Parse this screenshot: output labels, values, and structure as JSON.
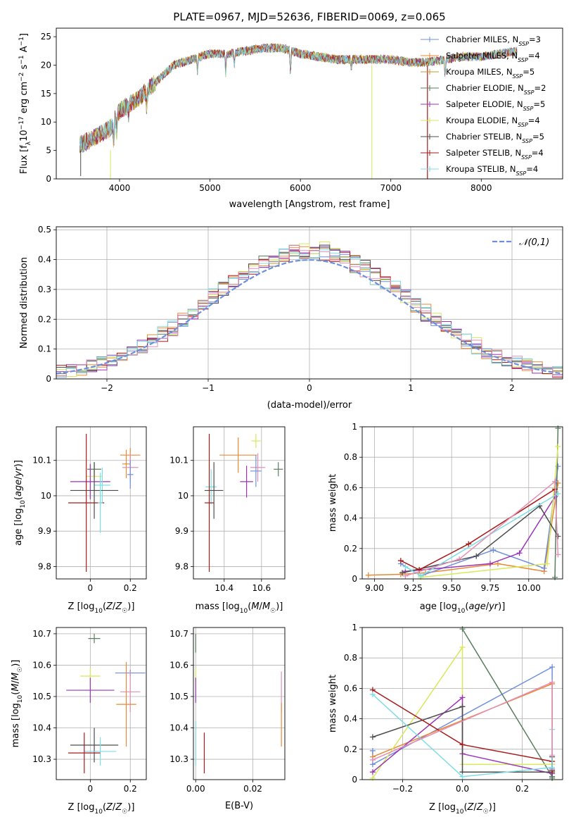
{
  "figure": {
    "title": "PLATE=0967, MJD=52636, FIBERID=0069, z=0.065"
  },
  "colors": {
    "c_blue": "#6f8fdd",
    "c_orange": "#e98a33",
    "c_gold": "#c9962e",
    "c_darkgreen": "#5a7f5e",
    "c_purple": "#9b35b6",
    "c_yellow": "#d7e85a",
    "c_darkgray": "#4d4d4d",
    "c_red": "#a81b1b",
    "c_cyan": "#7ddde5",
    "c_pink": "#e58fb5"
  },
  "chart_data": [
    {
      "id": "spectrum",
      "type": "line",
      "title": "PLATE=0967, MJD=52636, FIBERID=0069, z=0.065",
      "xlabel": "wavelength [Angstrom, rest frame]",
      "ylabel": "Flux [f_λ10^-17 erg cm^-2 s^-1 A^-1]",
      "xlim": [
        3300,
        8900
      ],
      "ylim": [
        0,
        26.5
      ],
      "xticks": [
        4000,
        5000,
        6000,
        7000,
        8000
      ],
      "yticks": [
        0,
        5,
        10,
        15,
        20,
        25
      ],
      "grid": false,
      "legend_position": "top-right",
      "continuum": {
        "x": [
          3560,
          3700,
          3900,
          4000,
          4200,
          4400,
          4600,
          4800,
          5000,
          5200,
          5400,
          5600,
          5800,
          6000,
          6200,
          6400,
          6600,
          6800,
          7000,
          7200,
          7400,
          7600,
          7800,
          8000,
          8200,
          8400
        ],
        "y": [
          6,
          7,
          9,
          12,
          14,
          17,
          20,
          21,
          22,
          22,
          22.5,
          23,
          23,
          22,
          21.5,
          21,
          21,
          21,
          21,
          20.5,
          20.5,
          21,
          21.5,
          21.5,
          22,
          22.5
        ]
      },
      "series": [
        {
          "name": "Chabrier MILES, N_SSP=3",
          "color_key": "c_blue"
        },
        {
          "name": "Salpeter MILES, N_SSP=4",
          "color_key": "c_orange"
        },
        {
          "name": "Kroupa MILES, N_SSP=5",
          "color_key": "c_gold"
        },
        {
          "name": "Chabrier ELODIE, N_SSP=2",
          "color_key": "c_darkgreen"
        },
        {
          "name": "Salpeter ELODIE, N_SSP=5",
          "color_key": "c_purple"
        },
        {
          "name": "Kroupa ELODIE, N_SSP=4",
          "color_key": "c_yellow"
        },
        {
          "name": "Chabrier STELIB, N_SSP=5",
          "color_key": "c_darkgray"
        },
        {
          "name": "Salpeter STELIB, N_SSP=4",
          "color_key": "c_red"
        },
        {
          "name": "Kroupa STELIB, N_SSP=4",
          "color_key": "c_cyan"
        }
      ]
    },
    {
      "id": "residuals",
      "type": "step",
      "xlabel": "(data-model)/error",
      "ylabel": "Normed distribution",
      "xlim": [
        -2.5,
        2.5
      ],
      "ylim": [
        0,
        0.51
      ],
      "xticks": [
        -2,
        -1,
        0,
        1,
        2
      ],
      "yticks": [
        0.0,
        0.1,
        0.2,
        0.3,
        0.4,
        0.5
      ],
      "grid": true,
      "legend_position": "top-right",
      "reference_curve": {
        "name": "𝒩(0,1)",
        "color_key": "c_blue"
      },
      "bin_width": 0.1,
      "series_color_keys": [
        "c_blue",
        "c_orange",
        "c_darkgreen",
        "c_purple",
        "c_yellow",
        "c_darkgray",
        "c_red",
        "c_cyan",
        "c_pink"
      ]
    },
    {
      "id": "age_vs_Z",
      "type": "errorbar",
      "xlabel": "Z [log10(Z/Z☉)]",
      "ylabel": "age [log10(age/yr)]",
      "xlim": [
        -0.17,
        0.28
      ],
      "ylim": [
        9.765,
        10.195
      ],
      "xticks": [
        0.0,
        0.2
      ],
      "yticks": [
        9.8,
        9.9,
        10.0,
        10.1
      ],
      "grid": true,
      "points": [
        {
          "x": 0.02,
          "y": 10.075,
          "xerr": 0.035,
          "yerr": 0.02,
          "color_key": "c_darkgreen"
        },
        {
          "x": 0.02,
          "y": 10.055,
          "xerr": 0.04,
          "yerr": 0.02,
          "color_key": "c_yellow"
        },
        {
          "x": 0.18,
          "y": 10.09,
          "xerr": 0.02,
          "yerr": 0.04,
          "color_key": "c_orange"
        },
        {
          "x": 0.2,
          "y": 10.115,
          "xerr": 0.05,
          "yerr": 0.02,
          "color_key": "c_orange"
        },
        {
          "x": 0.2,
          "y": 10.08,
          "xerr": 0.04,
          "yerr": 0.04,
          "color_key": "c_pink"
        },
        {
          "x": 0.2,
          "y": 10.06,
          "xerr": 0.015,
          "yerr": 0.04,
          "color_key": "c_blue"
        },
        {
          "x": 0.0,
          "y": 10.04,
          "xerr": 0.1,
          "yerr": 0.05,
          "color_key": "c_purple"
        },
        {
          "x": 0.06,
          "y": 10.03,
          "xerr": 0.04,
          "yerr": 0.05,
          "color_key": "c_cyan"
        },
        {
          "x": 0.02,
          "y": 10.015,
          "xerr": 0.12,
          "yerr": 0.08,
          "color_key": "c_darkgray"
        },
        {
          "x": -0.02,
          "y": 9.98,
          "xerr": 0.09,
          "yerr": 0.195,
          "color_key": "c_red"
        },
        {
          "x": 0.05,
          "y": 9.98,
          "xerr": 0.012,
          "yerr": 0.085,
          "color_key": "c_cyan"
        }
      ]
    },
    {
      "id": "age_vs_mass",
      "type": "errorbar",
      "xlabel": "mass [log10(M/M☉)]",
      "ylabel": "",
      "xlim": [
        10.235,
        10.725
      ],
      "ylim": [
        9.765,
        10.195
      ],
      "xticks": [
        10.4,
        10.6
      ],
      "yticks": [
        9.8,
        9.9,
        10.0,
        10.1
      ],
      "grid": true,
      "points": [
        {
          "x": 10.69,
          "y": 10.075,
          "xerr": 0.025,
          "yerr": 0.02,
          "color_key": "c_darkgreen"
        },
        {
          "x": 10.57,
          "y": 10.155,
          "xerr": 0.025,
          "yerr": 0.02,
          "color_key": "c_yellow"
        },
        {
          "x": 10.475,
          "y": 10.115,
          "xerr": 0.1,
          "yerr": 0.05,
          "color_key": "c_orange"
        },
        {
          "x": 10.58,
          "y": 10.08,
          "xerr": 0.04,
          "yerr": 0.04,
          "color_key": "c_pink"
        },
        {
          "x": 10.57,
          "y": 10.07,
          "xerr": 0.03,
          "yerr": 0.045,
          "color_key": "c_blue"
        },
        {
          "x": 10.52,
          "y": 10.04,
          "xerr": 0.035,
          "yerr": 0.045,
          "color_key": "c_purple"
        },
        {
          "x": 10.33,
          "y": 10.025,
          "xerr": 0.03,
          "yerr": 0.05,
          "color_key": "c_cyan"
        },
        {
          "x": 10.345,
          "y": 10.015,
          "xerr": 0.05,
          "yerr": 0.08,
          "color_key": "c_darkgray"
        },
        {
          "x": 10.32,
          "y": 9.98,
          "xerr": 0.025,
          "yerr": 0.195,
          "color_key": "c_red"
        }
      ]
    },
    {
      "id": "massweight_vs_age",
      "type": "line",
      "xlabel": "age [log10(age/yr)]",
      "ylabel": "mass weight",
      "xlim": [
        8.92,
        10.22
      ],
      "ylim": [
        0.0,
        1.0
      ],
      "xticks": [
        9.0,
        9.25,
        9.5,
        9.75,
        10.0
      ],
      "xtick_labels": [
        "9.00",
        "9.25",
        "9.50",
        "9.75",
        "10.00"
      ],
      "yticks": [
        0.0,
        0.2,
        0.4,
        0.6,
        0.8,
        1.0
      ],
      "grid": true,
      "series": [
        {
          "color_key": "c_orange",
          "x": [
            8.96,
            9.17,
            9.33,
            9.8,
            10.1,
            10.19
          ],
          "y": [
            0.025,
            0.03,
            0.04,
            0.1,
            0.05,
            0.63
          ]
        },
        {
          "color_key": "c_blue",
          "x": [
            9.17,
            9.3,
            9.77,
            10.1,
            10.19
          ],
          "y": [
            0.1,
            0.02,
            0.19,
            0.07,
            0.74
          ]
        },
        {
          "color_key": "c_darkgreen",
          "x": [
            10.17,
            10.19
          ],
          "y": [
            0.01,
            0.99
          ]
        },
        {
          "color_key": "c_purple",
          "x": [
            9.2,
            9.75,
            9.94,
            10.17
          ],
          "y": [
            0.05,
            0.1,
            0.17,
            0.54
          ]
        },
        {
          "color_key": "c_yellow",
          "x": [
            9.3,
            10.12,
            10.19
          ],
          "y": [
            0.01,
            0.1,
            0.87
          ]
        },
        {
          "color_key": "c_darkgray",
          "x": [
            9.18,
            9.66,
            10.07,
            10.19
          ],
          "y": [
            0.04,
            0.15,
            0.48,
            0.28
          ]
        },
        {
          "color_key": "c_red",
          "x": [
            9.17,
            9.29,
            9.61,
            10.17
          ],
          "y": [
            0.12,
            0.06,
            0.23,
            0.59
          ]
        },
        {
          "color_key": "c_cyan",
          "x": [
            9.2,
            9.3,
            10.19
          ],
          "y": [
            0.08,
            0.02,
            0.56
          ]
        },
        {
          "color_key": "c_pink",
          "x": [
            9.2,
            9.55,
            10.17,
            10.19
          ],
          "y": [
            0.02,
            0.13,
            0.64,
            0.16
          ]
        }
      ]
    },
    {
      "id": "mass_vs_Z",
      "type": "errorbar",
      "xlabel": "Z [log10(Z/Z☉)]",
      "ylabel": "mass [log10(M/M☉)]",
      "xlim": [
        -0.17,
        0.28
      ],
      "ylim": [
        10.235,
        10.72
      ],
      "xticks": [
        0.0,
        0.2
      ],
      "yticks": [
        10.3,
        10.4,
        10.5,
        10.6,
        10.7
      ],
      "grid": true,
      "points": [
        {
          "x": 0.02,
          "y": 10.685,
          "xerr": 0.03,
          "yerr": 0.015,
          "color_key": "c_darkgreen"
        },
        {
          "x": 0.0,
          "y": 10.565,
          "xerr": 0.05,
          "yerr": 0.025,
          "color_key": "c_yellow"
        },
        {
          "x": 0.2,
          "y": 10.575,
          "xerr": 0.075,
          "yerr": 0.01,
          "color_key": "c_blue"
        },
        {
          "x": 0.0,
          "y": 10.52,
          "xerr": 0.12,
          "yerr": 0.04,
          "color_key": "c_purple"
        },
        {
          "x": 0.2,
          "y": 10.515,
          "xerr": 0.05,
          "yerr": 0.065,
          "color_key": "c_pink"
        },
        {
          "x": 0.18,
          "y": 10.475,
          "xerr": 0.05,
          "yerr": 0.135,
          "color_key": "c_orange"
        },
        {
          "x": 0.02,
          "y": 10.345,
          "xerr": 0.12,
          "yerr": 0.055,
          "color_key": "c_darkgray"
        },
        {
          "x": 0.05,
          "y": 10.325,
          "xerr": 0.08,
          "yerr": 0.045,
          "color_key": "c_cyan"
        },
        {
          "x": -0.03,
          "y": 10.32,
          "xerr": 0.08,
          "yerr": 0.065,
          "color_key": "c_red"
        }
      ]
    },
    {
      "id": "mass_vs_EBV",
      "type": "errorbar",
      "xlabel": "E(B-V)",
      "ylabel": "",
      "xlim": [
        -0.0008,
        0.0312
      ],
      "ylim": [
        10.235,
        10.72
      ],
      "xticks": [
        0.0,
        0.02
      ],
      "xtick_labels": [
        "0.00",
        "0.02"
      ],
      "yticks": [
        10.3,
        10.4,
        10.5,
        10.6,
        10.7
      ],
      "grid": true,
      "points": [
        {
          "x": 0.0,
          "y": 10.67,
          "yerr": 0.03,
          "color_key": "c_darkgreen"
        },
        {
          "x": 0.0,
          "y": 10.565,
          "yerr": 0.025,
          "color_key": "c_yellow"
        },
        {
          "x": 0.0,
          "y": 10.52,
          "yerr": 0.04,
          "color_key": "c_purple"
        },
        {
          "x": 0.0,
          "y": 10.35,
          "yerr": 0.07,
          "color_key": "c_cyan"
        },
        {
          "x": 0.003,
          "y": 10.32,
          "yerr": 0.065,
          "color_key": "c_red"
        },
        {
          "x": 0.03,
          "y": 10.515,
          "yerr": 0.065,
          "color_key": "c_pink"
        },
        {
          "x": 0.03,
          "y": 10.41,
          "yerr": 0.07,
          "color_key": "c_orange"
        }
      ]
    },
    {
      "id": "massweight_vs_Z",
      "type": "line",
      "xlabel": "Z [log10(Z/Z☉)]",
      "ylabel": "mass weight",
      "xlim": [
        -0.335,
        0.335
      ],
      "ylim": [
        0.0,
        1.0
      ],
      "xticks": [
        -0.2,
        0.0,
        0.2
      ],
      "xtick_labels": [
        "−0.2",
        "0.0",
        "0.2"
      ],
      "yticks": [
        0.0,
        0.2,
        0.4,
        0.6,
        0.8,
        1.0
      ],
      "grid": true,
      "series": [
        {
          "color_key": "c_blue",
          "x": [
            -0.3,
            -0.3,
            0.3,
            0.3,
            0.3
          ],
          "y": [
            0.19,
            0.1,
            0.74,
            0.07,
            0.02
          ]
        },
        {
          "color_key": "c_orange",
          "x": [
            -0.3,
            0.3,
            0.3,
            0.3
          ],
          "y": [
            0.15,
            0.63,
            0.1,
            0.04
          ]
        },
        {
          "color_key": "c_darkgreen",
          "x": [
            0.0,
            0.3,
            0.3
          ],
          "y": [
            0.99,
            0.02,
            0.01
          ]
        },
        {
          "color_key": "c_yellow",
          "x": [
            -0.3,
            0.0,
            0.0,
            0.3
          ],
          "y": [
            0.01,
            0.87,
            0.1,
            0.1
          ]
        },
        {
          "color_key": "c_purple",
          "x": [
            -0.3,
            0.0,
            0.0,
            0.3
          ],
          "y": [
            0.05,
            0.54,
            0.17,
            0.04
          ]
        },
        {
          "color_key": "c_darkgray",
          "x": [
            -0.3,
            0.0,
            0.0,
            0.3,
            0.3
          ],
          "y": [
            0.28,
            0.48,
            0.05,
            0.05,
            0.15
          ]
        },
        {
          "color_key": "c_red",
          "x": [
            -0.3,
            0.0,
            0.3,
            0.3
          ],
          "y": [
            0.59,
            0.23,
            0.12,
            0.06
          ]
        },
        {
          "color_key": "c_cyan",
          "x": [
            -0.3,
            0.0,
            0.3,
            0.3
          ],
          "y": [
            0.56,
            0.02,
            0.08,
            0.33
          ]
        },
        {
          "color_key": "c_pink",
          "x": [
            -0.3,
            0.3,
            0.3
          ],
          "y": [
            0.13,
            0.64,
            0.16
          ]
        }
      ]
    }
  ]
}
